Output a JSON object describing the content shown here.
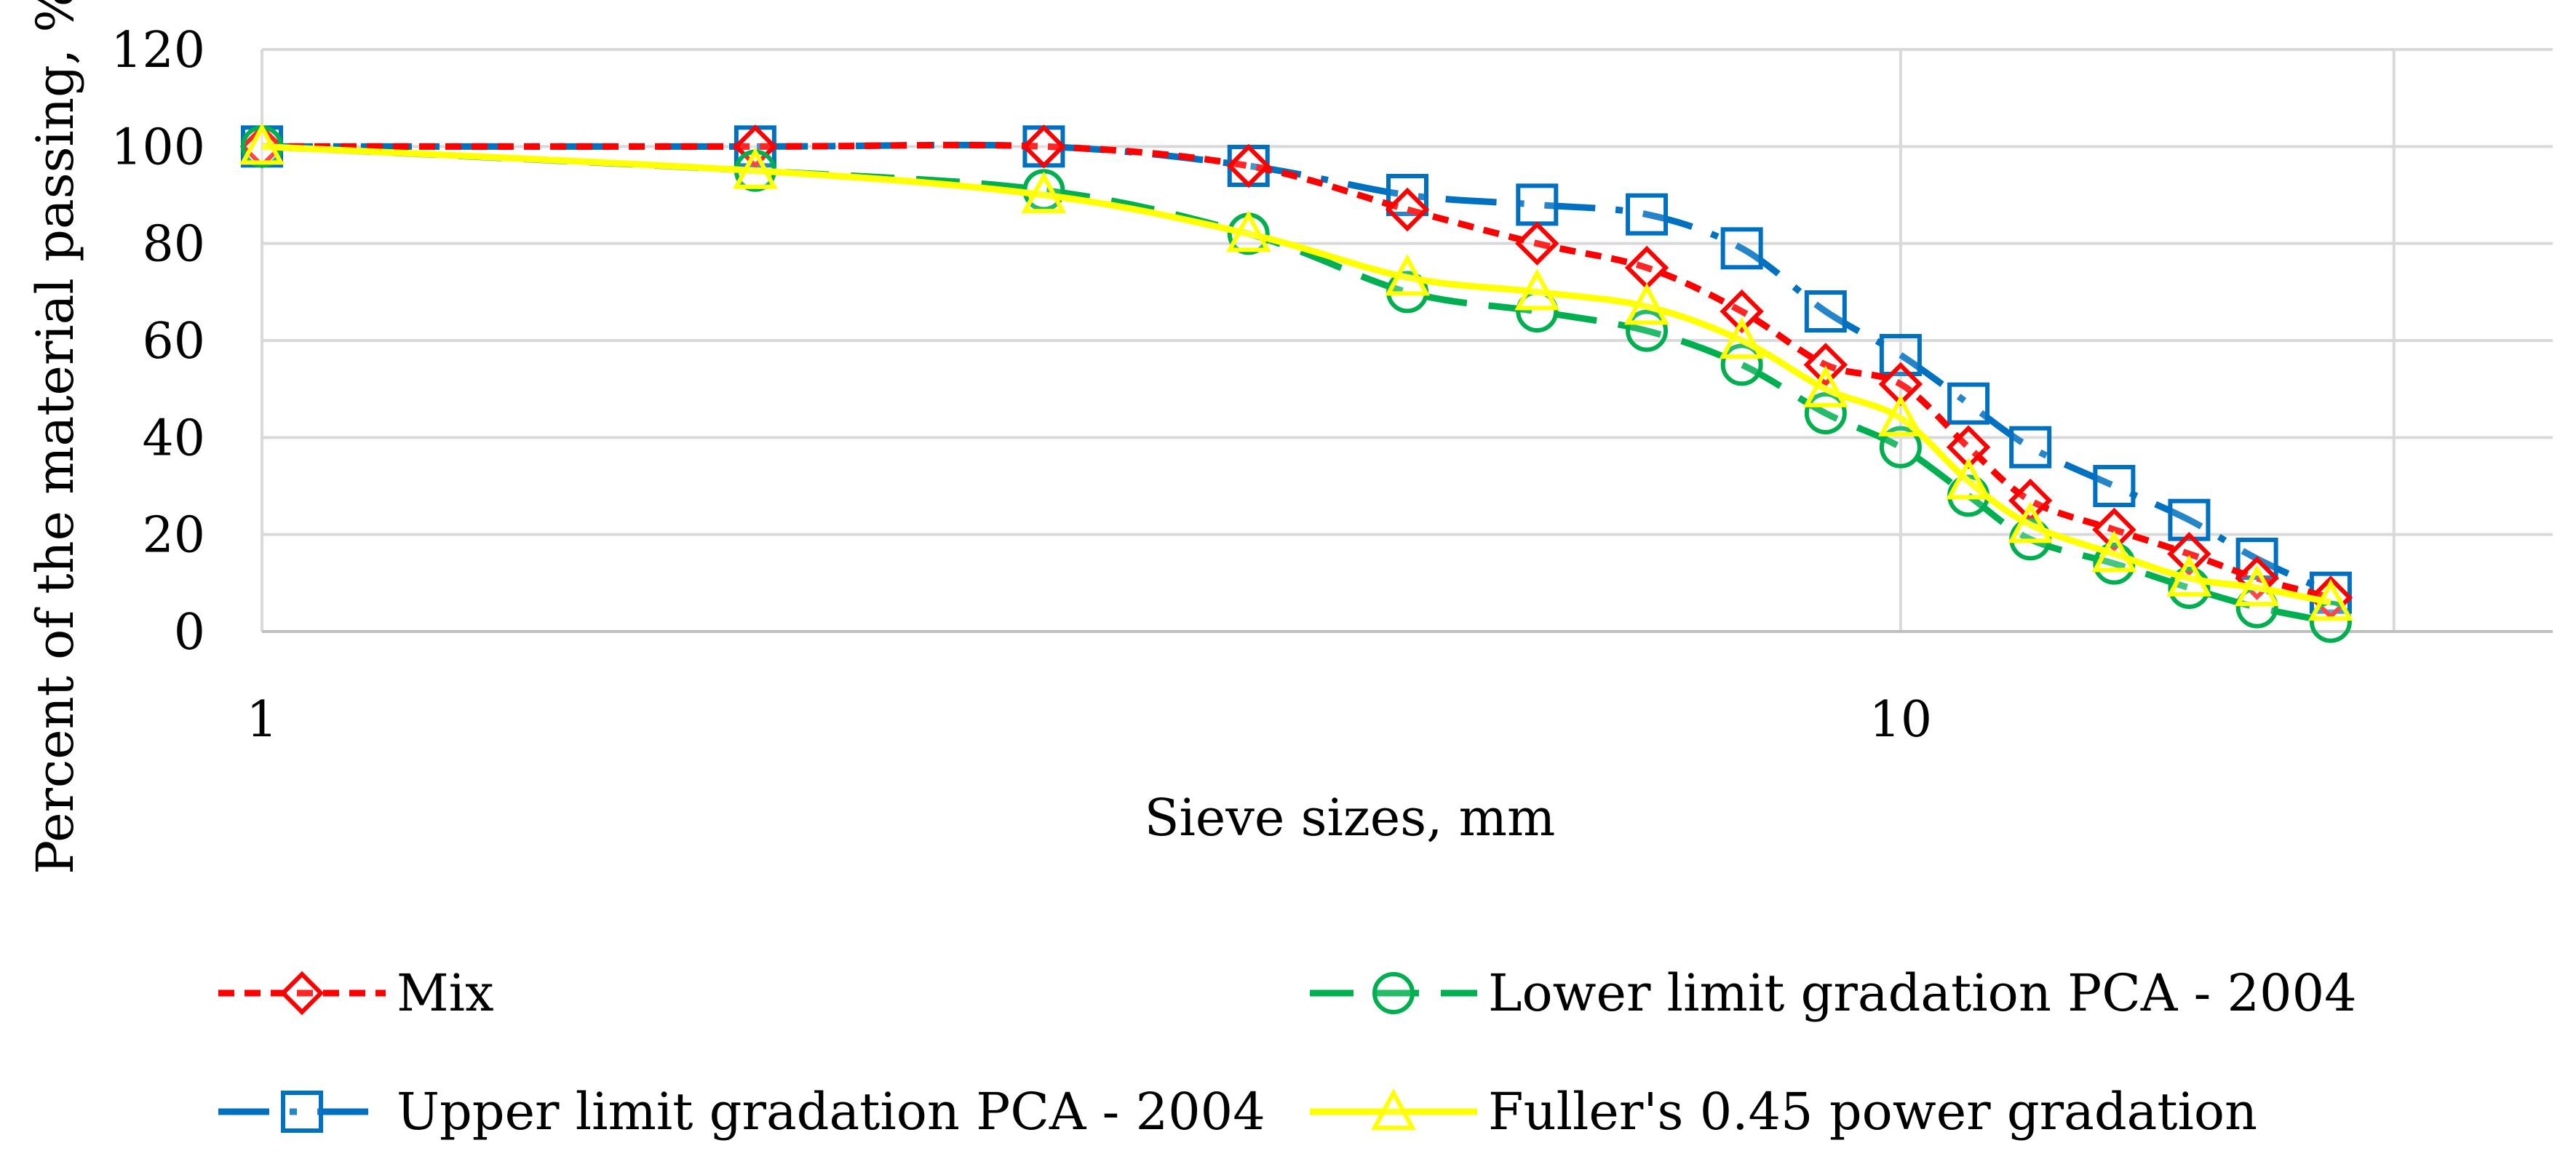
{
  "chart_data": {
    "type": "line",
    "title": "",
    "xlabel": "Sieve sizes, mm",
    "ylabel": "Percent of the material passing, %",
    "x_scale": "log",
    "xlim": [
      1,
      25
    ],
    "ylim": [
      0,
      120
    ],
    "y_ticks": [
      "0",
      "20",
      "40",
      "60",
      "80",
      "100",
      "120"
    ],
    "x_ticks": [
      {
        "value": 1,
        "label": "1"
      },
      {
        "value": 10,
        "label": "10"
      }
    ],
    "grid": true,
    "legend_position": "bottom",
    "series": [
      {
        "name": "Mix",
        "color": "#ff0000",
        "line_style": "dashed",
        "marker": "diamond",
        "x": [
          1,
          2,
          3,
          4,
          5,
          6,
          7,
          8,
          9,
          10,
          11,
          12,
          13.5,
          15,
          16.5,
          18.3
        ],
        "y": [
          100,
          100,
          100,
          96,
          87,
          80,
          75,
          66,
          55,
          51,
          38,
          27,
          21,
          16,
          11,
          7
        ]
      },
      {
        "name": "Lower limit gradation PCA - 2004",
        "color": "#00b050",
        "line_style": "long-dash",
        "marker": "circle",
        "x": [
          1,
          2,
          3,
          4,
          5,
          6,
          7,
          8,
          9,
          10,
          11,
          12,
          13.5,
          15,
          16.5,
          18.3
        ],
        "y": [
          100,
          95,
          91,
          82,
          70,
          66,
          62,
          55,
          45,
          38,
          28,
          19,
          14,
          9,
          5,
          2
        ]
      },
      {
        "name": "Upper limit gradation PCA - 2004",
        "color": "#0070c0",
        "line_style": "dash-dot",
        "marker": "square",
        "x": [
          1,
          2,
          3,
          4,
          5,
          6,
          7,
          8,
          9,
          10,
          11,
          12,
          13.5,
          15,
          16.5,
          18.3
        ],
        "y": [
          100,
          100,
          100,
          96,
          90,
          88,
          86,
          79,
          66,
          57,
          47,
          38,
          30,
          23,
          15,
          8
        ]
      },
      {
        "name": "Fuller's 0.45 power gradation",
        "color": "#ffff00",
        "line_style": "solid",
        "marker": "triangle",
        "x": [
          1,
          2,
          3,
          4,
          5,
          6,
          7,
          8,
          9,
          10,
          11,
          12,
          13.5,
          15,
          16.5,
          18.3
        ],
        "y": [
          100,
          95,
          90,
          82,
          73,
          70,
          67,
          60,
          50,
          44,
          31,
          22,
          16,
          11,
          9,
          6
        ]
      }
    ]
  }
}
